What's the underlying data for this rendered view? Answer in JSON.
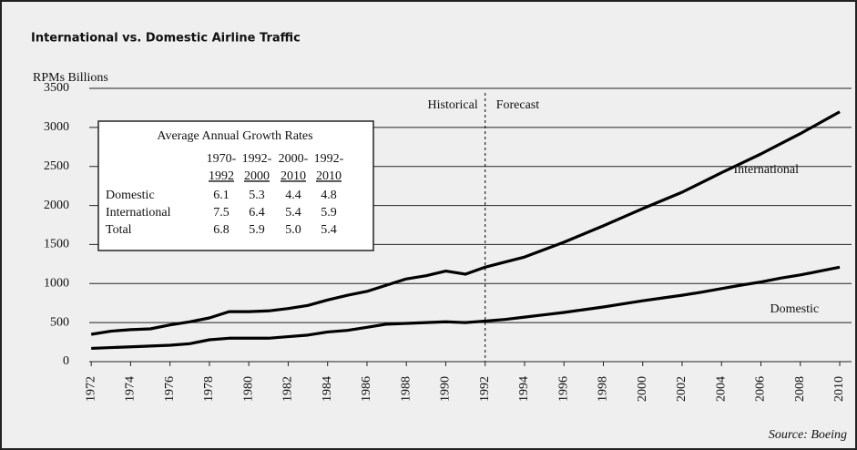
{
  "chart_data": {
    "type": "line",
    "title": "International vs. Domestic Airline Traffic",
    "y_label": "RPMs Billions",
    "source": "Source: Boeing",
    "annotations": {
      "historical": "Historical",
      "forecast": "Forecast",
      "divider_x": 1992
    },
    "x": [
      1972,
      1973,
      1974,
      1975,
      1976,
      1977,
      1978,
      1979,
      1980,
      1981,
      1982,
      1983,
      1984,
      1985,
      1986,
      1987,
      1988,
      1989,
      1990,
      1991,
      1992,
      1993,
      1994,
      1995,
      1996,
      1997,
      1998,
      1999,
      2000,
      2001,
      2002,
      2003,
      2004,
      2005,
      2006,
      2007,
      2008,
      2009,
      2010
    ],
    "series": [
      {
        "name": "International",
        "color": "#000000",
        "values": [
          350,
          390,
          410,
          420,
          470,
          510,
          560,
          640,
          640,
          650,
          680,
          720,
          790,
          850,
          900,
          980,
          1060,
          1100,
          1160,
          1120,
          1210,
          1275,
          1340,
          1435,
          1530,
          1635,
          1740,
          1850,
          1960,
          2065,
          2170,
          2295,
          2420,
          2540,
          2660,
          2790,
          2920,
          3060,
          3200
        ]
      },
      {
        "name": "Domestic",
        "color": "#000000",
        "values": [
          170,
          180,
          190,
          200,
          210,
          230,
          280,
          300,
          300,
          300,
          320,
          340,
          380,
          400,
          440,
          480,
          490,
          500,
          510,
          500,
          520,
          540,
          570,
          600,
          630,
          665,
          700,
          740,
          780,
          815,
          850,
          890,
          935,
          980,
          1020,
          1070,
          1110,
          1160,
          1210
        ]
      }
    ],
    "xlim": [
      1971.9,
      2010.6
    ],
    "xticks": [
      1972,
      1974,
      1976,
      1978,
      1980,
      1982,
      1984,
      1986,
      1988,
      1990,
      1992,
      1994,
      1996,
      1998,
      2000,
      2002,
      2004,
      2006,
      2008,
      2010
    ],
    "ylim": [
      0,
      3500
    ],
    "yticks": [
      0,
      500,
      1000,
      1500,
      2000,
      2500,
      3000,
      3500
    ],
    "grid": true,
    "table": {
      "title": "Average Annual Growth Rates",
      "columns": [
        {
          "top": "1970-",
          "bottom": "1992"
        },
        {
          "top": "1992-",
          "bottom": "2000"
        },
        {
          "top": "2000-",
          "bottom": "2010"
        },
        {
          "top": "1992-",
          "bottom": "2010"
        }
      ],
      "rows": [
        [
          "Domestic",
          "6.1",
          "5.3",
          "4.4",
          "4.8"
        ],
        [
          "International",
          "7.5",
          "6.4",
          "5.4",
          "5.9"
        ],
        [
          "Total",
          "6.8",
          "5.9",
          "5.0",
          "5.4"
        ]
      ]
    }
  }
}
